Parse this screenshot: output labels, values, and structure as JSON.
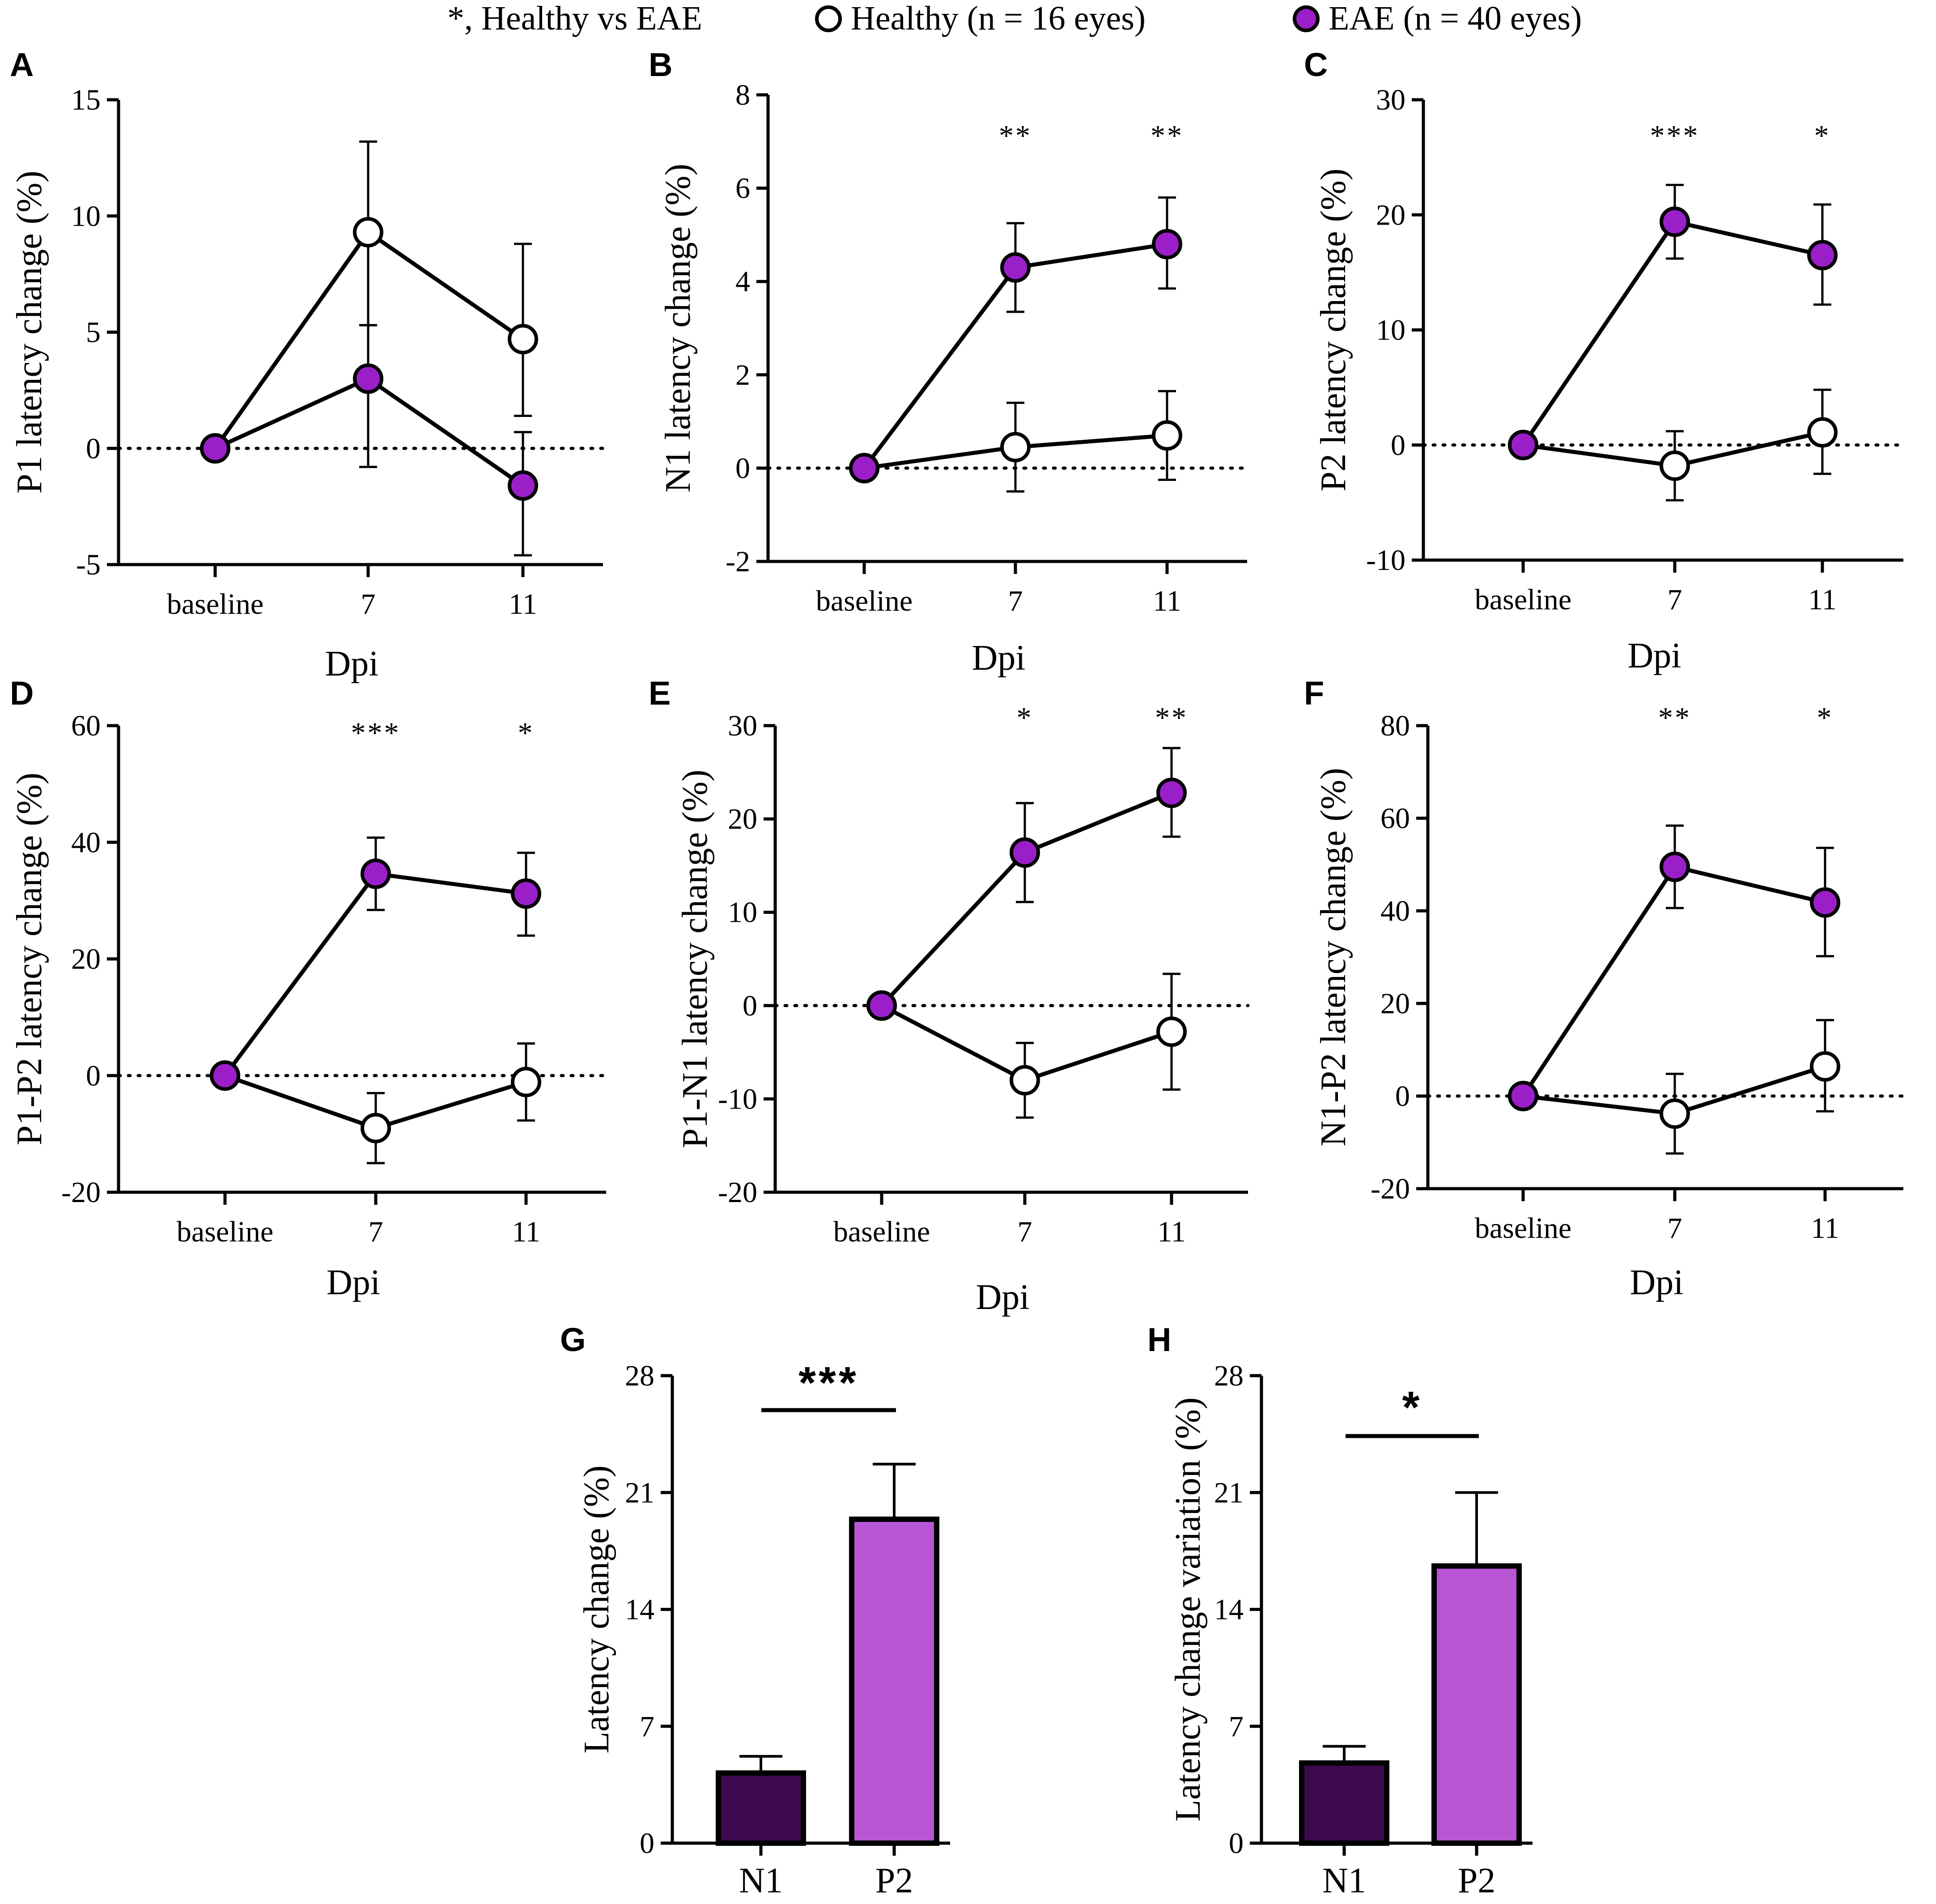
{
  "legend": {
    "sig_text": "*, Healthy vs EAE",
    "healthy_label": "Healthy (n = 16 eyes)",
    "eae_label": "EAE (n = 40 eyes)"
  },
  "colors": {
    "eae_fill": "#9b1fc9",
    "healthy_fill": "#ffffff",
    "bar_n1": "#3e0a4f",
    "bar_p2": "#b856d6",
    "axis": "#000000"
  },
  "chart_data": [
    {
      "id": "A",
      "panel_label": "A",
      "type": "line",
      "ylabel": "P1 latency change (%)",
      "xlabel": "Dpi",
      "categories": [
        "baseline",
        "7",
        "11"
      ],
      "ylim": [
        -5,
        15
      ],
      "yticks": [
        "-5",
        "0",
        "5",
        "10",
        "15"
      ],
      "series": [
        {
          "name": "Healthy",
          "values": [
            0,
            9.3,
            4.7
          ],
          "err_up": [
            0,
            3.9,
            4.1
          ],
          "err_down": [
            0,
            4.0,
            3.3
          ]
        },
        {
          "name": "EAE",
          "values": [
            0,
            3.0,
            -1.6
          ],
          "err_up": [
            0,
            2.3,
            2.3
          ],
          "err_down": [
            0,
            3.8,
            3.0
          ]
        }
      ],
      "significance": [
        "",
        "",
        ""
      ]
    },
    {
      "id": "B",
      "panel_label": "B",
      "type": "line",
      "ylabel": "N1 latency change (%)",
      "xlabel": "Dpi",
      "categories": [
        "baseline",
        "7",
        "11"
      ],
      "ylim": [
        -2,
        8
      ],
      "yticks": [
        "-2",
        "0",
        "2",
        "4",
        "6",
        "8"
      ],
      "series": [
        {
          "name": "Healthy",
          "values": [
            0,
            0.45,
            0.7
          ],
          "err_up": [
            0,
            0.95,
            0.95
          ],
          "err_down": [
            0,
            0.95,
            0.95
          ]
        },
        {
          "name": "EAE",
          "values": [
            0,
            4.3,
            4.8
          ],
          "err_up": [
            0,
            0.95,
            1.0
          ],
          "err_down": [
            0,
            0.95,
            0.95
          ]
        }
      ],
      "significance": [
        "",
        "**",
        "**"
      ]
    },
    {
      "id": "C",
      "panel_label": "C",
      "type": "line",
      "ylabel": "P2 latency change (%)",
      "xlabel": "Dpi",
      "categories": [
        "baseline",
        "7",
        "11"
      ],
      "ylim": [
        -10,
        30
      ],
      "yticks": [
        "-10",
        "0",
        "10",
        "20",
        "30"
      ],
      "series": [
        {
          "name": "Healthy",
          "values": [
            0,
            -1.8,
            1.1
          ],
          "err_up": [
            0,
            3.0,
            3.7
          ],
          "err_down": [
            0,
            3.0,
            3.6
          ]
        },
        {
          "name": "EAE",
          "values": [
            0,
            19.4,
            16.5
          ],
          "err_up": [
            0,
            3.2,
            4.4
          ],
          "err_down": [
            0,
            3.2,
            4.3
          ]
        }
      ],
      "significance": [
        "",
        "***",
        "*"
      ]
    },
    {
      "id": "D",
      "panel_label": "D",
      "type": "line",
      "ylabel": "P1-P2 latency change (%)",
      "xlabel": "Dpi",
      "categories": [
        "baseline",
        "7",
        "11"
      ],
      "ylim": [
        -20,
        60
      ],
      "yticks": [
        "-20",
        "0",
        "20",
        "40",
        "60"
      ],
      "series": [
        {
          "name": "Healthy",
          "values": [
            0,
            -9.0,
            -1.1
          ],
          "err_up": [
            0,
            6.0,
            6.6
          ],
          "err_down": [
            0,
            6.0,
            6.6
          ]
        },
        {
          "name": "EAE",
          "values": [
            0,
            34.6,
            31.2
          ],
          "err_up": [
            0,
            6.2,
            7.0
          ],
          "err_down": [
            0,
            6.2,
            7.2
          ]
        }
      ],
      "significance": [
        "",
        "***",
        "*"
      ]
    },
    {
      "id": "E",
      "panel_label": "E",
      "type": "line",
      "ylabel": "P1-N1 latency change (%)",
      "xlabel": "Dpi",
      "categories": [
        "baseline",
        "7",
        "11"
      ],
      "ylim": [
        -20,
        30
      ],
      "yticks": [
        "-20",
        "-10",
        "0",
        "10",
        "20",
        "30"
      ],
      "series": [
        {
          "name": "Healthy",
          "values": [
            0,
            -8.0,
            -2.8
          ],
          "err_up": [
            0,
            4.0,
            6.2
          ],
          "err_down": [
            0,
            4.0,
            6.2
          ]
        },
        {
          "name": "EAE",
          "values": [
            0,
            16.4,
            22.8
          ],
          "err_up": [
            0,
            5.3,
            4.8
          ],
          "err_down": [
            0,
            5.3,
            4.7
          ]
        }
      ],
      "significance": [
        "",
        "*",
        "**"
      ]
    },
    {
      "id": "F",
      "panel_label": "F",
      "type": "line",
      "ylabel": "N1-P2 latency change (%)",
      "xlabel": "Dpi",
      "categories": [
        "baseline",
        "7",
        "11"
      ],
      "ylim": [
        -20,
        80
      ],
      "yticks": [
        "-20",
        "0",
        "20",
        "40",
        "60",
        "80"
      ],
      "series": [
        {
          "name": "Healthy",
          "values": [
            0,
            -3.8,
            6.4
          ],
          "err_up": [
            0,
            8.6,
            10.0
          ],
          "err_down": [
            0,
            8.6,
            9.7
          ]
        },
        {
          "name": "EAE",
          "values": [
            0,
            49.5,
            41.8
          ],
          "err_up": [
            0,
            8.9,
            11.8
          ],
          "err_down": [
            0,
            8.9,
            11.6
          ]
        }
      ],
      "significance": [
        "",
        "**",
        "*"
      ]
    },
    {
      "id": "G",
      "panel_label": "G",
      "type": "bar",
      "ylabel": "Latency change (%)",
      "xlabel": "",
      "categories": [
        "N1",
        "P2"
      ],
      "values": [
        4.2,
        19.4
      ],
      "err": [
        1.0,
        3.3
      ],
      "ylim": [
        0,
        28
      ],
      "yticks": [
        "0",
        "7",
        "14",
        "21",
        "28"
      ],
      "significance": "***"
    },
    {
      "id": "H",
      "panel_label": "H",
      "type": "bar",
      "ylabel": "Latency change variation (%)",
      "xlabel": "",
      "categories": [
        "N1",
        "P2"
      ],
      "values": [
        4.8,
        16.6
      ],
      "err": [
        1.0,
        4.4
      ],
      "ylim": [
        0,
        28
      ],
      "yticks": [
        "0",
        "7",
        "14",
        "21",
        "28"
      ],
      "significance": "*"
    }
  ]
}
